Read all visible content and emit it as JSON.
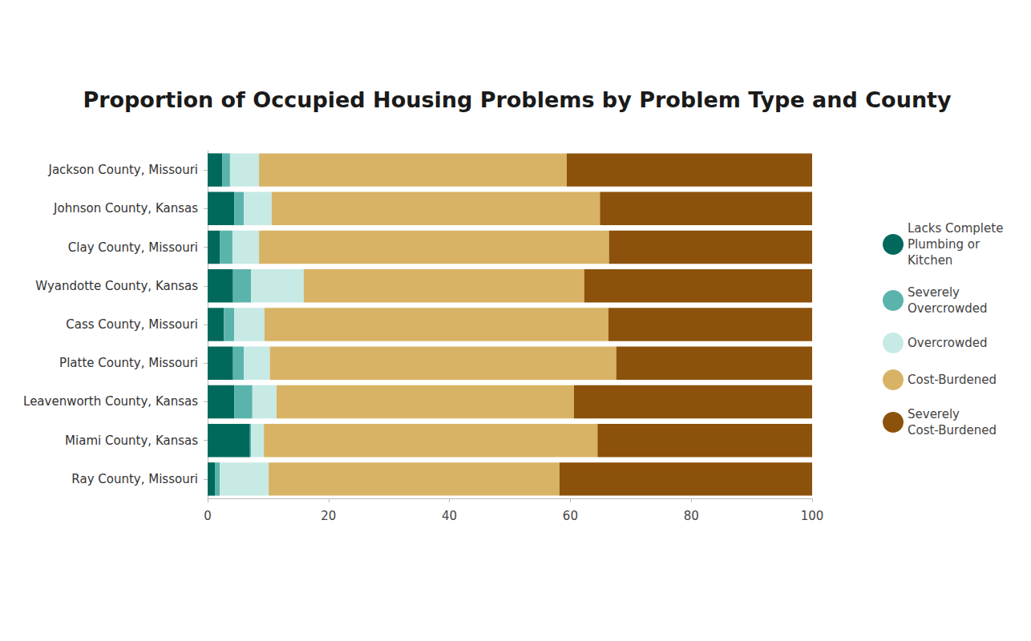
{
  "chart_data": {
    "type": "bar",
    "title": "Proportion of Occupied Housing Problems by Problem Type and County",
    "orientation": "horizontal",
    "stacked": true,
    "grid": false,
    "legend": "right",
    "categories": [
      "Jackson County, Missouri",
      "Johnson County, Kansas",
      "Clay County, Missouri",
      "Wyandotte County, Kansas",
      "Cass County, Missouri",
      "Platte County, Missouri",
      "Leavenworth County, Kansas",
      "Miami County, Kansas",
      "Ray County, Missouri"
    ],
    "series": [
      {
        "name": "Lacks Complete Plumbing or Kitchen",
        "color": "#00695c",
        "values": [
          2.4,
          4.4,
          2.0,
          4.2,
          2.7,
          4.2,
          4.4,
          7.0,
          1.2
        ]
      },
      {
        "name": "Severely Overcrowded",
        "color": "#5ab4ac",
        "values": [
          1.3,
          1.6,
          2.1,
          3.0,
          1.7,
          1.8,
          3.0,
          0.2,
          0.8
        ]
      },
      {
        "name": "Overcrowded",
        "color": "#c7eae5",
        "values": [
          4.8,
          4.6,
          4.4,
          8.7,
          5.0,
          4.3,
          4.0,
          2.1,
          8.1
        ]
      },
      {
        "name": "Cost-Burdened",
        "color": "#d8b365",
        "values": [
          50.9,
          54.3,
          57.9,
          46.4,
          56.9,
          57.3,
          49.2,
          55.2,
          48.1
        ]
      },
      {
        "name": "Severely Cost-Burdened",
        "color": "#8c510a",
        "values": [
          40.6,
          35.1,
          33.6,
          37.7,
          33.7,
          32.4,
          39.4,
          35.5,
          41.8
        ]
      }
    ],
    "xlim": [
      0,
      100
    ],
    "xticks": [
      0,
      20,
      40,
      60,
      80,
      100
    ]
  }
}
